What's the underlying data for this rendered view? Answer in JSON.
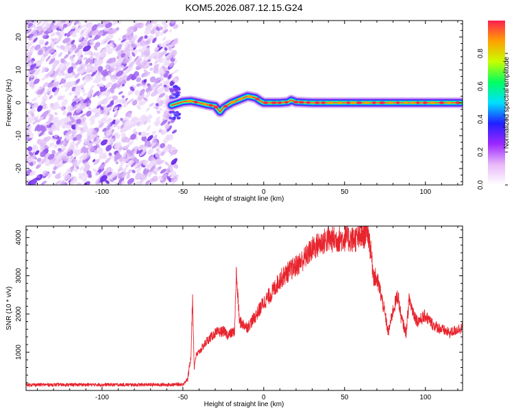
{
  "title": "KOM5.2026.087.12.15.G24",
  "chart_data": [
    {
      "type": "heatmap",
      "name": "spectrogram",
      "xlabel": "Height of straight line (km)",
      "ylabel": "Frequency (Hz)",
      "xlim": [
        -147,
        123
      ],
      "ylim": [
        -25,
        25
      ],
      "xticks": [
        -100,
        -50,
        0,
        50,
        100
      ],
      "yticks": [
        -20,
        -10,
        0,
        10,
        20
      ],
      "signal_onset_km": -57,
      "noise_region_km": [
        -147,
        -57
      ],
      "signal_track": {
        "x": [
          -57,
          -50,
          -45,
          -40,
          -35,
          -30,
          -27,
          -25,
          -20,
          -15,
          -10,
          -7,
          -5,
          -2,
          0,
          5,
          10,
          15,
          17,
          20,
          30,
          50,
          70,
          90,
          110,
          122
        ],
        "y": [
          -0.8,
          0.3,
          0.5,
          0.0,
          -0.6,
          -1.0,
          -2.8,
          -1.5,
          0.0,
          1.0,
          2.0,
          1.7,
          1.5,
          0.5,
          0.0,
          0.0,
          0.0,
          0.2,
          0.8,
          0.2,
          0.0,
          0.0,
          0.0,
          0.0,
          0.0,
          0.0
        ]
      },
      "colorbar": {
        "label": "Normalized spectral amplitude",
        "range": [
          0,
          1
        ],
        "ticks": [
          "0.0",
          "0.2",
          "0.4",
          "0.6",
          "0.8"
        ],
        "colors": [
          "#ffffff",
          "#e8b8f8",
          "#9c27ff",
          "#2020ff",
          "#00e0ff",
          "#00ff60",
          "#c8ff00",
          "#ffa000",
          "#ff2050"
        ]
      }
    },
    {
      "type": "line",
      "name": "snr",
      "xlabel": "Height of straight line (km)",
      "ylabel": "SNR (10 * v/v)",
      "xlim": [
        -147,
        123
      ],
      "ylim": [
        0,
        4300
      ],
      "xticks": [
        -100,
        -50,
        0,
        50,
        100
      ],
      "yticks": [
        1000,
        2000,
        3000,
        4000
      ],
      "color": "#e8242d",
      "series": [
        {
          "name": "SNR",
          "x": [
            -147,
            -120,
            -90,
            -60,
            -50,
            -47,
            -45,
            -44,
            -43,
            -42,
            -40,
            -35,
            -30,
            -25,
            -22,
            -20,
            -18,
            -17,
            -15,
            -10,
            -5,
            0,
            5,
            10,
            15,
            20,
            25,
            30,
            35,
            40,
            45,
            50,
            55,
            60,
            62,
            64,
            65,
            66,
            68,
            70,
            72,
            75,
            77,
            80,
            83,
            85,
            88,
            90,
            92,
            95,
            100,
            105,
            110,
            115,
            120,
            123
          ],
          "y": [
            150,
            150,
            150,
            150,
            160,
            300,
            900,
            2450,
            600,
            900,
            1000,
            1300,
            1500,
            1550,
            1450,
            1500,
            1550,
            3100,
            1800,
            1650,
            1950,
            2300,
            2550,
            2900,
            3100,
            3250,
            3450,
            3700,
            3850,
            3950,
            3950,
            3980,
            3950,
            4000,
            4050,
            4250,
            4000,
            3700,
            3000,
            2900,
            2600,
            2000,
            1500,
            2100,
            2500,
            1900,
            1500,
            2400,
            2100,
            1800,
            1950,
            1700,
            1600,
            1500,
            1600,
            1650
          ]
        }
      ]
    }
  ]
}
